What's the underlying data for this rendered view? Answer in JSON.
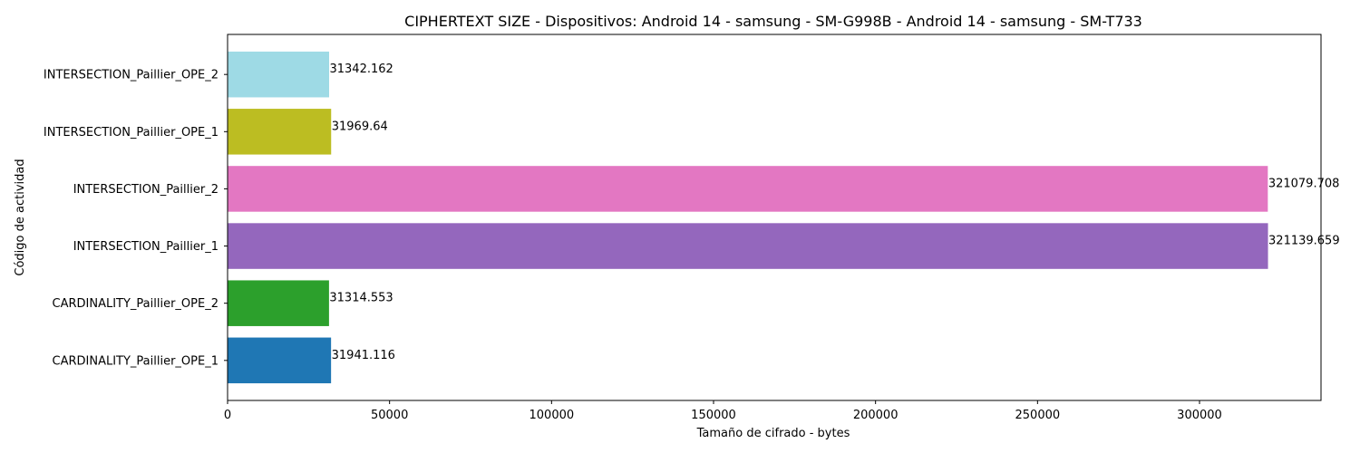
{
  "chart_data": {
    "type": "bar",
    "orientation": "horizontal",
    "title": "CIPHERTEXT SIZE - Dispositivos: Android 14 - samsung - SM-G998B - Android 14 - samsung - SM-T733",
    "xlabel": "Tamaño de cifrado - bytes",
    "ylabel": "Código de actividad",
    "xlim": [
      0,
      337500
    ],
    "xticks": [
      0,
      50000,
      100000,
      150000,
      200000,
      250000,
      300000
    ],
    "grid": false,
    "categories": [
      "CARDINALITY_Paillier_OPE_1",
      "CARDINALITY_Paillier_OPE_2",
      "INTERSECTION_Paillier_1",
      "INTERSECTION_Paillier_2",
      "INTERSECTION_Paillier_OPE_1",
      "INTERSECTION_Paillier_OPE_2"
    ],
    "values": [
      31941.116,
      31314.553,
      321139.659,
      321079.708,
      31969.64,
      31342.162
    ],
    "value_labels": [
      "31941.116",
      "31314.553",
      "321139.659",
      "321079.708",
      "31969.64",
      "31342.162"
    ],
    "colors": [
      "#1f77b4",
      "#2ca02c",
      "#9467bd",
      "#e377c2",
      "#bcbd22",
      "#9edae5"
    ]
  }
}
